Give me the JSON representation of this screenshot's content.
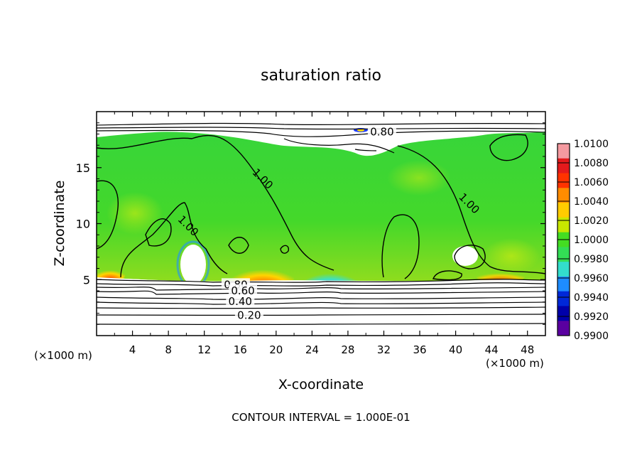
{
  "chart_data": {
    "type": "heatmap",
    "title": "saturation ratio",
    "xlabel": "X-coordinate",
    "ylabel": "Z-coordinate",
    "x_unit": "(×1000 m)",
    "x_unit_right": "(×1000 m)",
    "xlim": [
      0,
      50
    ],
    "ylim": [
      0,
      20
    ],
    "x_ticks": [
      4,
      8,
      12,
      16,
      20,
      24,
      28,
      32,
      36,
      40,
      44,
      48
    ],
    "y_ticks": [
      5,
      10,
      15
    ],
    "contour_interval_text": "CONTOUR INTERVAL = 1.000E-01",
    "colorbar": {
      "labels": [
        "1.0100",
        "1.0080",
        "1.0060",
        "1.0040",
        "1.0020",
        "1.0000",
        "0.9980",
        "0.9960",
        "0.9940",
        "0.9920",
        "0.9900"
      ],
      "colors": [
        "#f59aa0",
        "#e41a1c",
        "#ff3300",
        "#ff8c00",
        "#ffcc00",
        "#c8e600",
        "#44dd22",
        "#33dd55",
        "#33ddcc",
        "#1e8cff",
        "#0028d8",
        "#0000aa",
        "#5a00a0"
      ]
    },
    "contour_labels": [
      {
        "text": "0.80",
        "x": 31.8,
        "z": 18.2
      },
      {
        "text": "1.00",
        "x": 18.5,
        "z": 14.0
      },
      {
        "text": "1.00",
        "x": 41.5,
        "z": 11.8
      },
      {
        "text": "1.00",
        "x": 10.2,
        "z": 9.8
      },
      {
        "text": "0.80",
        "x": 15.5,
        "z": 4.55
      },
      {
        "text": "0.60",
        "x": 16.3,
        "z": 4.0
      },
      {
        "text": "0.40",
        "x": 16.0,
        "z": 3.05
      },
      {
        "text": "0.20",
        "x": 17.0,
        "z": 1.8
      }
    ]
  }
}
